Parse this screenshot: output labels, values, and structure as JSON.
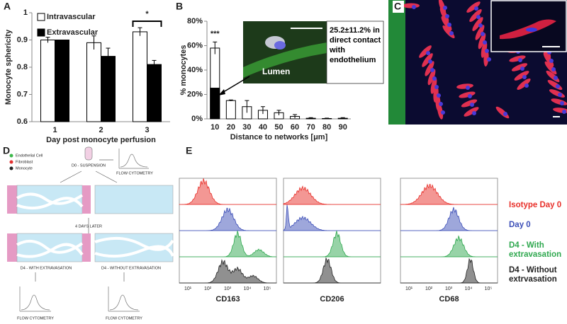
{
  "chart_data": [
    {
      "panel": "A",
      "type": "bar",
      "y_label": "Monocyte sphericity",
      "x_label": "Day post monocyte perfusion",
      "categories": [
        "1",
        "2",
        "3"
      ],
      "series": [
        {
          "name": "Intravascular",
          "color": "#ffffff",
          "values": [
            0.9,
            0.89,
            0.93
          ],
          "errors": [
            0.01,
            0.025,
            0.015
          ]
        },
        {
          "name": "Extravascular",
          "color": "#000000",
          "values": [
            0.9,
            0.84,
            0.81
          ],
          "errors": [
            0,
            0.03,
            0.015
          ]
        }
      ],
      "ylim": [
        0.6,
        1
      ],
      "yticks": [
        0.6,
        0.7,
        0.8,
        0.9,
        1
      ],
      "annotation": "*"
    },
    {
      "panel": "B",
      "type": "bar",
      "y_label": "% monocytes",
      "x_label": "Distance to networks [μm]",
      "categories": [
        "10",
        "20",
        "30",
        "40",
        "50",
        "60",
        "70",
        "80",
        "90"
      ],
      "series": [
        {
          "color": "#ffffff",
          "values": [
            58,
            15,
            10,
            7,
            5,
            2,
            0.5,
            0.3,
            0.5
          ],
          "errors": [
            5,
            0.5,
            5,
            3,
            2,
            1.5,
            0.5,
            0.3,
            0.5
          ]
        },
        {
          "color": "#000000",
          "values": [
            25.2,
            null,
            null,
            null,
            null,
            null,
            null,
            null,
            null
          ]
        }
      ],
      "ylim": [
        0,
        80
      ],
      "yticks": [
        {
          "value": 0,
          "label": "0%"
        },
        {
          "value": 20,
          "label": "20%"
        },
        {
          "value": 40,
          "label": "40%"
        },
        {
          "value": 60,
          "label": "60%"
        },
        {
          "value": 80,
          "label": "80%"
        }
      ],
      "annotation": "***",
      "inset_label": "Lumen",
      "inset_text": "25.2±11.2% in direct contact with endothelium"
    }
  ],
  "panel_c": {
    "panel": "C"
  },
  "diagram": {
    "panel": "D",
    "legend": [
      "Endothelial Cell",
      "Fibroblast",
      "Monocyte"
    ],
    "start": "D0 - SUSPENSION",
    "flow": "FLOW CYTOMETRY",
    "interval": "4 DAYS LATER",
    "with": "D4 - WITH EXTRAVASATION",
    "without": "D4 - WITHOUT EXTRAVASATION"
  },
  "flow": {
    "panel": "E",
    "markers": [
      "CD163",
      "CD206",
      "CD68"
    ],
    "legend": [
      {
        "text": "Isotype Day 0",
        "color": "#e8302a"
      },
      {
        "text": "Day 0",
        "color": "#3d4fb8"
      },
      {
        "text": "D4 - With extravasation",
        "color": "#2fa84f"
      },
      {
        "text": "D4 - Without extrvasation",
        "color": "#222222"
      }
    ],
    "axis_ticks": [
      "10¹",
      "10²",
      "10³",
      "10⁴",
      "10⁵"
    ]
  }
}
